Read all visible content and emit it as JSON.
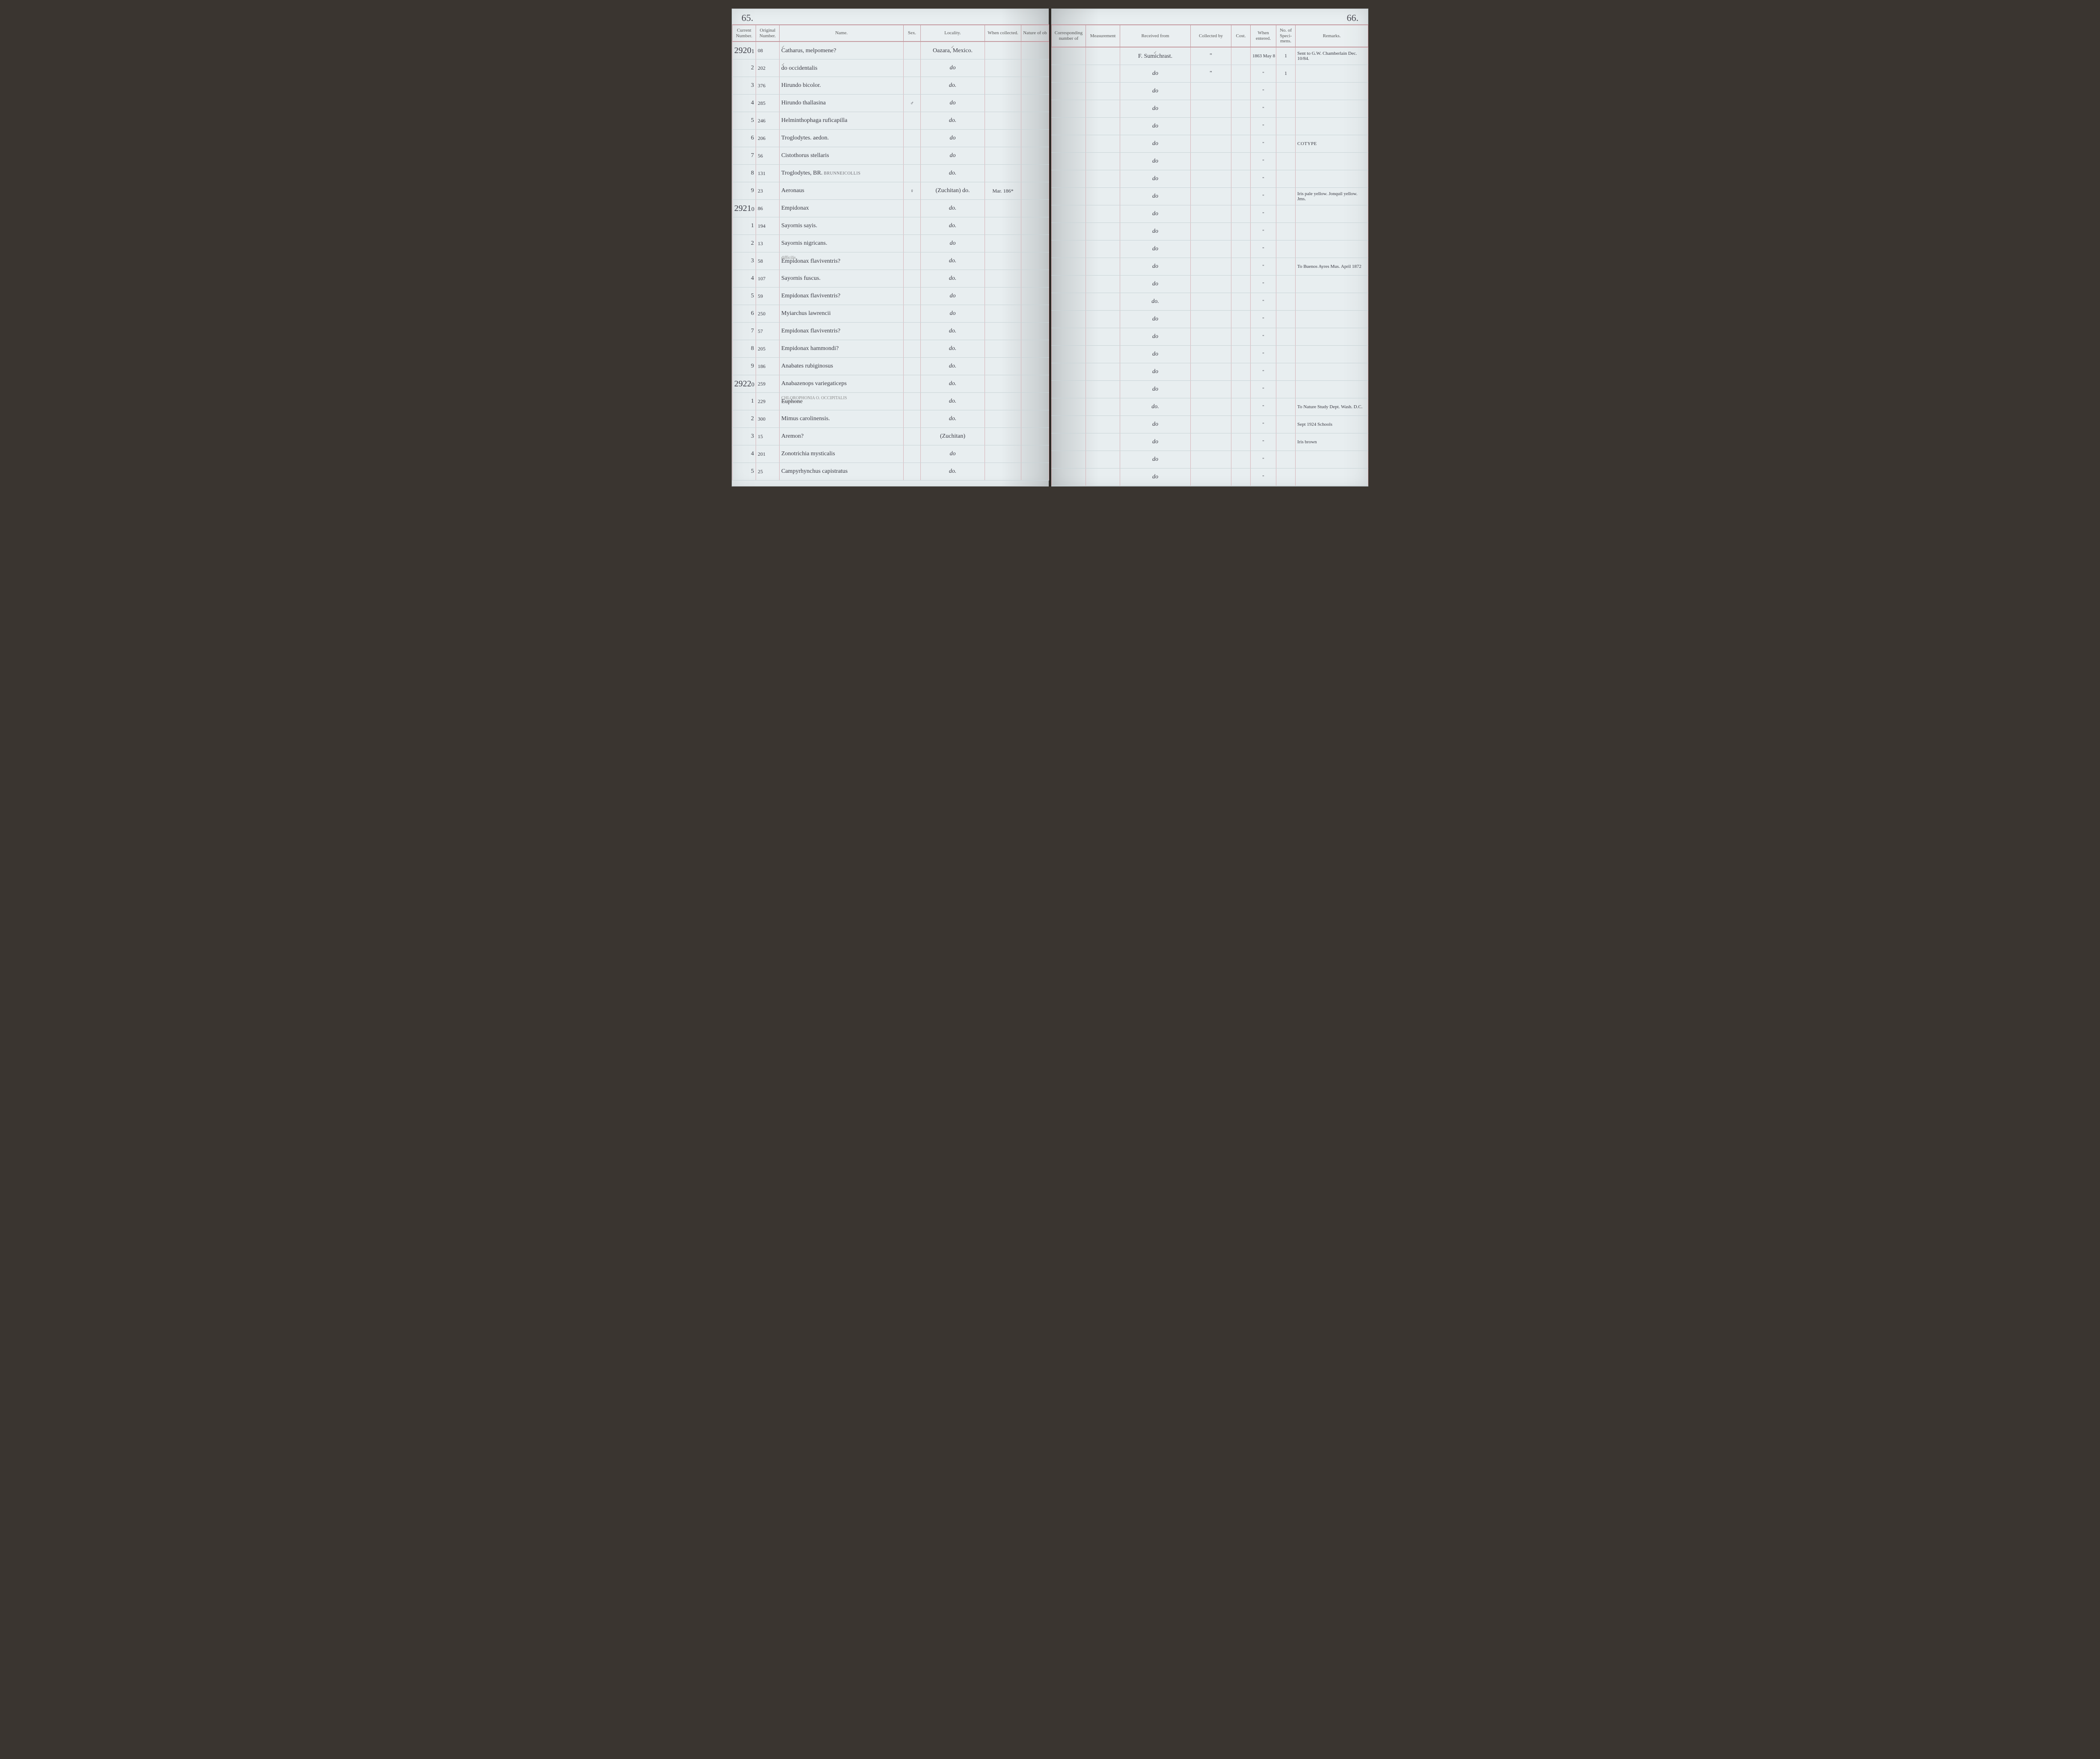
{
  "page_left_number": "65.",
  "page_right_number": "66.",
  "columns_left": {
    "current_number": "Current Number.",
    "original_number": "Original Number.",
    "name": "Name.",
    "sex": "Sex.",
    "locality": "Locality.",
    "when_collected": "When collected.",
    "nature": "Nature of ob"
  },
  "columns_right": {
    "corresponding": "Corresponding number of",
    "measurement": "Measurement",
    "received_from": "Received from",
    "collected_by": "Collected by",
    "cost": "Cost.",
    "when_entered": "When entered.",
    "no_specimens": "No. of Speci- mens.",
    "remarks": "Remarks."
  },
  "rows": [
    {
      "curr_big": "2920",
      "curr_small": "1",
      "orig": "08",
      "name": "Catharus, melpomene?",
      "name_annot": "✓",
      "sex": "",
      "locality": "Oazara, Mexico.",
      "locality_annot": "✓",
      "when_coll": "",
      "received": "F. Sumichrast.",
      "received_annot": "✓",
      "collected": "\"",
      "when_ent": "1863 May 8",
      "spec": "1",
      "remarks": "Sent to G.W. Chamberlain Dec. 10/84."
    },
    {
      "curr_big": "",
      "curr_small": "2",
      "orig": "202",
      "name": "do      occidentalis",
      "name_annot": "✓",
      "sex": "",
      "locality": "do",
      "when_coll": "",
      "received": "do",
      "collected": "\"",
      "when_ent": "\"",
      "spec": "1",
      "remarks": ""
    },
    {
      "curr_big": "",
      "curr_small": "3",
      "orig": "376",
      "name": "Hirundo bicolor.",
      "sex": "",
      "locality": "do.",
      "when_coll": "",
      "received": "do",
      "collected": "",
      "when_ent": "\"",
      "spec": "",
      "remarks": ""
    },
    {
      "curr_big": "",
      "curr_small": "4",
      "orig": "285",
      "name": "Hirundo thallasina",
      "sex": "♂",
      "locality": "do",
      "when_coll": "",
      "received": "do",
      "collected": "",
      "when_ent": "\"",
      "spec": "",
      "remarks": ""
    },
    {
      "curr_big": "",
      "curr_small": "5",
      "orig": "246",
      "name": "Helminthophaga ruficapilla",
      "sex": "",
      "locality": "do.",
      "when_coll": "",
      "received": "do",
      "collected": "",
      "when_ent": "\"",
      "spec": "",
      "remarks": ""
    },
    {
      "curr_big": "",
      "curr_small": "6",
      "orig": "206",
      "name": "Troglodytes. aedon.",
      "sex": "",
      "locality": "do",
      "when_coll": "",
      "received": "do",
      "collected": "",
      "when_ent": "\"",
      "spec": "",
      "remarks": "COTYPE",
      "remarks_pencil": true
    },
    {
      "curr_big": "",
      "curr_small": "7",
      "orig": "56",
      "name": "Cistothorus stellaris",
      "sex": "",
      "locality": "do",
      "when_coll": "",
      "received": "do",
      "collected": "",
      "when_ent": "\"",
      "spec": "",
      "remarks": ""
    },
    {
      "curr_big": "",
      "curr_small": "8",
      "orig": "131",
      "name": "Troglodytes, BR.",
      "name_printed_suffix": "BRUNNEICOLLIS",
      "sex": "",
      "locality": "do.",
      "when_coll": "",
      "received": "do",
      "collected": "",
      "when_ent": "\"",
      "spec": "",
      "remarks": ""
    },
    {
      "curr_big": "",
      "curr_small": "9",
      "orig": "23",
      "name": "Aeronaus",
      "sex": "♀",
      "locality": "(Zuchitan) do.",
      "when_coll": "Mar. 186*",
      "received": "do",
      "collected": "",
      "when_ent": "\"",
      "spec": "",
      "remarks": "Iris pale yellow. Jonquil yellow. Jms."
    },
    {
      "curr_big": "2921",
      "curr_small": "0",
      "orig": "86",
      "name": "Empidonax",
      "sex": "",
      "locality": "do.",
      "when_coll": "",
      "received": "do",
      "collected": "",
      "when_ent": "\"",
      "spec": "",
      "remarks": ""
    },
    {
      "curr_big": "",
      "curr_small": "1",
      "orig": "194",
      "name": "Sayornis sayis.",
      "sex": "",
      "locality": "do.",
      "when_coll": "",
      "received": "do",
      "collected": "",
      "when_ent": "\"",
      "spec": "",
      "remarks": ""
    },
    {
      "curr_big": "",
      "curr_small": "2",
      "orig": "13",
      "name": "Sayornis nigricans.",
      "sex": "",
      "locality": "do",
      "when_coll": "",
      "received": "do",
      "collected": "",
      "when_ent": "\"",
      "spec": "",
      "remarks": ""
    },
    {
      "curr_big": "",
      "curr_small": "3",
      "orig": "58",
      "name": "Empidonax flaviventris?",
      "name_annot": "difficilis",
      "sex": "",
      "locality": "do.",
      "when_coll": "",
      "received": "do",
      "collected": "",
      "when_ent": "\"",
      "spec": "",
      "remarks": "To Buenos Ayres Mus. April 1872"
    },
    {
      "curr_big": "",
      "curr_small": "4",
      "orig": "107",
      "name": "Sayornis fuscus.",
      "sex": "",
      "locality": "do.",
      "when_coll": "",
      "received": "do",
      "collected": "",
      "when_ent": "\"",
      "spec": "",
      "remarks": ""
    },
    {
      "curr_big": "",
      "curr_small": "5",
      "orig": "59",
      "name": "Empidonax flaviventris?",
      "sex": "",
      "locality": "do",
      "when_coll": "",
      "received": "do.",
      "collected": "",
      "when_ent": "\"",
      "spec": "",
      "remarks": ""
    },
    {
      "curr_big": "",
      "curr_small": "6",
      "orig": "250",
      "name": "Myiarchus lawrencii",
      "sex": "",
      "locality": "do",
      "when_coll": "",
      "received": "do",
      "collected": "",
      "when_ent": "\"",
      "spec": "",
      "remarks": ""
    },
    {
      "curr_big": "",
      "curr_small": "7",
      "orig": "57",
      "name": "Empidonax flaviventris?",
      "sex": "",
      "locality": "do.",
      "when_coll": "",
      "received": "do",
      "collected": "",
      "when_ent": "\"",
      "spec": "",
      "remarks": ""
    },
    {
      "curr_big": "",
      "curr_small": "8",
      "orig": "205",
      "name": "Empidonax hammondi?",
      "sex": "",
      "locality": "do.",
      "when_coll": "",
      "received": "do",
      "collected": "",
      "when_ent": "\"",
      "spec": "",
      "remarks": ""
    },
    {
      "curr_big": "",
      "curr_small": "9",
      "orig": "186",
      "name": "Anabates rubiginosus",
      "sex": "",
      "locality": "do.",
      "when_coll": "",
      "received": "do",
      "collected": "",
      "when_ent": "\"",
      "spec": "",
      "remarks": ""
    },
    {
      "curr_big": "2922",
      "curr_small": "0",
      "orig": "259",
      "name": "Anabazenops variegaticeps",
      "sex": "",
      "locality": "do.",
      "when_coll": "",
      "received": "do",
      "collected": "",
      "when_ent": "\"",
      "spec": "",
      "remarks": ""
    },
    {
      "curr_big": "",
      "curr_small": "1",
      "orig": "229",
      "name": "Euphone",
      "name_strike": true,
      "name_printed_above": "CHLOROPHONIA O. OCCIPITALIS",
      "sex": "",
      "locality": "do.",
      "when_coll": "",
      "received": "do.",
      "collected": "",
      "when_ent": "\"",
      "spec": "",
      "remarks": "To Nature Study Dept. Wash. D.C."
    },
    {
      "curr_big": "",
      "curr_small": "2",
      "orig": "300",
      "name": "Mimus carolinensis.",
      "sex": "",
      "locality": "do.",
      "when_coll": "",
      "received": "do",
      "collected": "",
      "when_ent": "\"",
      "spec": "",
      "remarks": "Sept 1924  Schools"
    },
    {
      "curr_big": "",
      "curr_small": "3",
      "orig": "15",
      "name": "Aremon?",
      "sex": "",
      "locality": "(Zuchitan)",
      "when_coll": "",
      "received": "do",
      "collected": "",
      "when_ent": "\"",
      "spec": "",
      "remarks": "Iris brown"
    },
    {
      "curr_big": "",
      "curr_small": "4",
      "orig": "201",
      "name": "Zonotrichia mysticalis",
      "sex": "",
      "locality": "do",
      "when_coll": "",
      "received": "do",
      "collected": "",
      "when_ent": "\"",
      "spec": "",
      "remarks": ""
    },
    {
      "curr_big": "",
      "curr_small": "5",
      "orig": "25",
      "name": "Campyrhynchus capistratus",
      "sex": "",
      "locality": "do.",
      "when_coll": "",
      "received": "do",
      "collected": "",
      "when_ent": "\"",
      "spec": "",
      "remarks": ""
    }
  ]
}
